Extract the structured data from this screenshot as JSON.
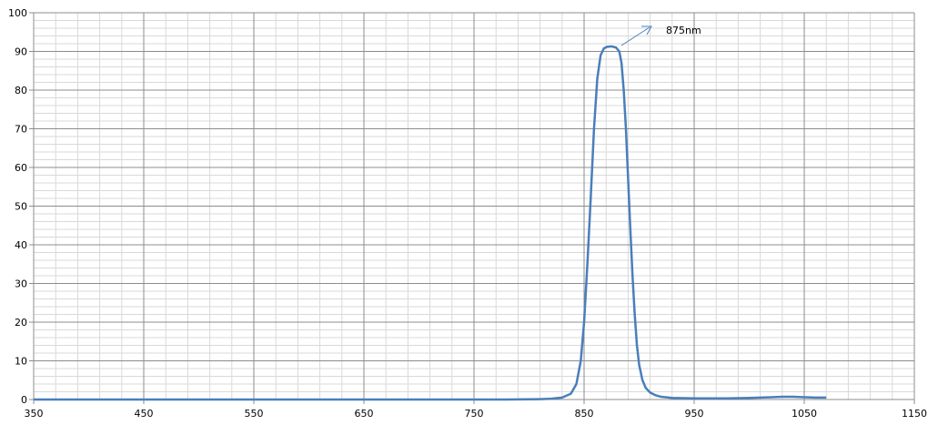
{
  "chart_data": {
    "type": "line",
    "annotation": "875nm",
    "x": [
      350,
      400,
      450,
      500,
      550,
      600,
      650,
      700,
      750,
      780,
      800,
      810,
      820,
      830,
      838,
      843,
      847,
      850,
      853,
      856,
      859,
      862,
      865,
      868,
      871,
      875,
      879,
      882,
      884,
      886,
      888,
      890,
      892,
      894,
      896,
      898,
      900,
      903,
      906,
      910,
      915,
      920,
      930,
      950,
      980,
      1000,
      1020,
      1030,
      1040,
      1050,
      1060,
      1070
    ],
    "series": [
      {
        "color": "#4a7ebb",
        "values": [
          0,
          0,
          0,
          0,
          0,
          0,
          0,
          0,
          0,
          0,
          0.05,
          0.1,
          0.2,
          0.5,
          1.5,
          4,
          10,
          20,
          35,
          52,
          70,
          83,
          89,
          90.8,
          91.2,
          91.3,
          91,
          90,
          87,
          80,
          70,
          57,
          44,
          32,
          22,
          14,
          9,
          5,
          3,
          1.8,
          1.1,
          0.7,
          0.4,
          0.3,
          0.3,
          0.4,
          0.6,
          0.7,
          0.7,
          0.6,
          0.5,
          0.5
        ]
      }
    ],
    "xlim": [
      350,
      1150
    ],
    "ylim": [
      0,
      100
    ],
    "xticks": [
      350,
      450,
      550,
      650,
      750,
      850,
      950,
      1050,
      1150
    ],
    "yticks": [
      0,
      10,
      20,
      30,
      40,
      50,
      60,
      70,
      80,
      90,
      100
    ],
    "x_minor_step": 20,
    "y_minor_step": 2,
    "grid": true
  }
}
